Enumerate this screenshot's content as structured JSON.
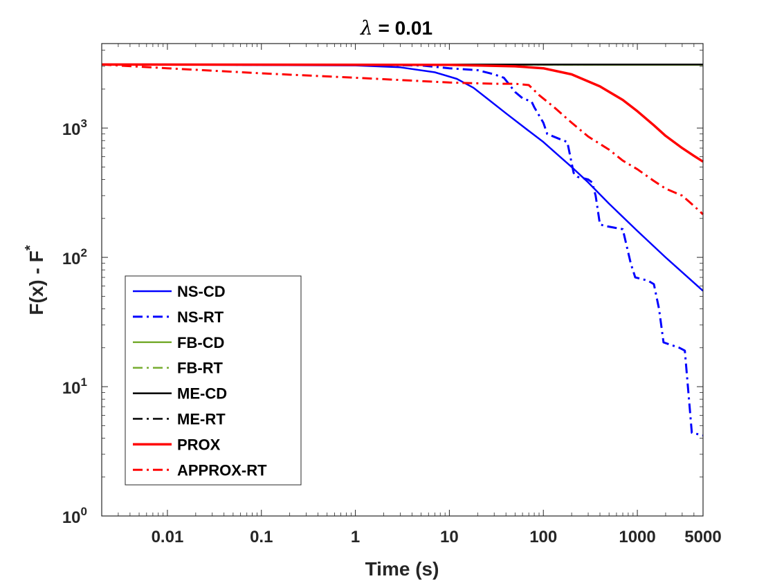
{
  "chart_data": {
    "type": "line",
    "title": "λ = 0.01",
    "title_symbol": "λ",
    "title_rest": " = 0.01",
    "xlabel": "Time (s)",
    "ylabel": "F(x) - F",
    "ylabel_superscript": "*",
    "xscale": "log",
    "yscale": "log",
    "xlim": [
      0.002,
      5000
    ],
    "ylim": [
      1,
      4500
    ],
    "xticks": [
      {
        "value": 0.01,
        "label": "0.01"
      },
      {
        "value": 0.1,
        "label": "0.1"
      },
      {
        "value": 1,
        "label": "1"
      },
      {
        "value": 10,
        "label": "10"
      },
      {
        "value": 100,
        "label": "100"
      },
      {
        "value": 1000,
        "label": "1000"
      },
      {
        "value": 5000,
        "label": "5000"
      }
    ],
    "yticks": [
      {
        "value": 1,
        "base": "10",
        "exp": "0"
      },
      {
        "value": 10,
        "base": "10",
        "exp": "1"
      },
      {
        "value": 100,
        "base": "10",
        "exp": "2"
      },
      {
        "value": 1000,
        "base": "10",
        "exp": "3"
      }
    ],
    "legend_position": "lower-left",
    "series": [
      {
        "name": "NS-CD",
        "color": "#0000ff",
        "dash": "solid",
        "width": 2.5,
        "x": [
          0.002,
          1,
          3,
          7,
          12,
          18,
          25,
          40,
          70,
          100,
          150,
          200,
          300,
          500,
          1000,
          2000,
          5000
        ],
        "y": [
          3100,
          3050,
          2950,
          2700,
          2400,
          2050,
          1700,
          1300,
          950,
          780,
          600,
          500,
          380,
          260,
          160,
          100,
          55
        ]
      },
      {
        "name": "NS-RT",
        "color": "#0000ff",
        "dash": "dashdot",
        "width": 3,
        "x": [
          0.002,
          1,
          5,
          10,
          20,
          30,
          38,
          45,
          50,
          60,
          75,
          80,
          100,
          110,
          150,
          180,
          210,
          230,
          300,
          330,
          360,
          400,
          450,
          700,
          850,
          950,
          1300,
          1500,
          1700,
          1900,
          2800,
          3200,
          3800,
          5000
        ],
        "y": [
          3100,
          3080,
          3050,
          2900,
          2800,
          2600,
          2450,
          2100,
          1900,
          1700,
          1600,
          1450,
          1100,
          900,
          820,
          780,
          450,
          420,
          400,
          380,
          300,
          180,
          175,
          165,
          90,
          70,
          66,
          62,
          40,
          22,
          20,
          19,
          4.4,
          4.2
        ]
      },
      {
        "name": "FB-CD",
        "color": "#77ac30",
        "dash": "solid",
        "width": 2.5,
        "x": [
          0.002,
          5000
        ],
        "y": [
          3100,
          3080
        ]
      },
      {
        "name": "FB-RT",
        "color": "#77ac30",
        "dash": "dashdot",
        "width": 2.5,
        "x": [
          0.002,
          5000
        ],
        "y": [
          3100,
          3080
        ]
      },
      {
        "name": "ME-CD",
        "color": "#000000",
        "dash": "solid",
        "width": 2.5,
        "x": [
          0.002,
          5000
        ],
        "y": [
          3100,
          3100
        ]
      },
      {
        "name": "ME-RT",
        "color": "#000000",
        "dash": "dashdot",
        "width": 2.5,
        "x": [
          0.002,
          5000
        ],
        "y": [
          3100,
          3100
        ]
      },
      {
        "name": "PROX",
        "color": "#ff0000",
        "dash": "solid",
        "width": 3.5,
        "x": [
          0.002,
          10,
          50,
          100,
          200,
          400,
          700,
          1000,
          1500,
          2000,
          3000,
          4000,
          5000
        ],
        "y": [
          3100,
          3080,
          3000,
          2900,
          2600,
          2100,
          1650,
          1350,
          1050,
          870,
          700,
          610,
          550
        ]
      },
      {
        "name": "APPROX-RT",
        "color": "#ff0000",
        "dash": "dashdot",
        "width": 3,
        "x": [
          0.002,
          0.01,
          0.1,
          1,
          10,
          30,
          50,
          70,
          90,
          130,
          200,
          300,
          500,
          700,
          1000,
          1500,
          2000,
          3000,
          4000,
          5000
        ],
        "y": [
          3100,
          2900,
          2650,
          2450,
          2250,
          2200,
          2200,
          2150,
          1800,
          1450,
          1100,
          860,
          680,
          560,
          480,
          390,
          340,
          300,
          250,
          215
        ]
      }
    ]
  }
}
